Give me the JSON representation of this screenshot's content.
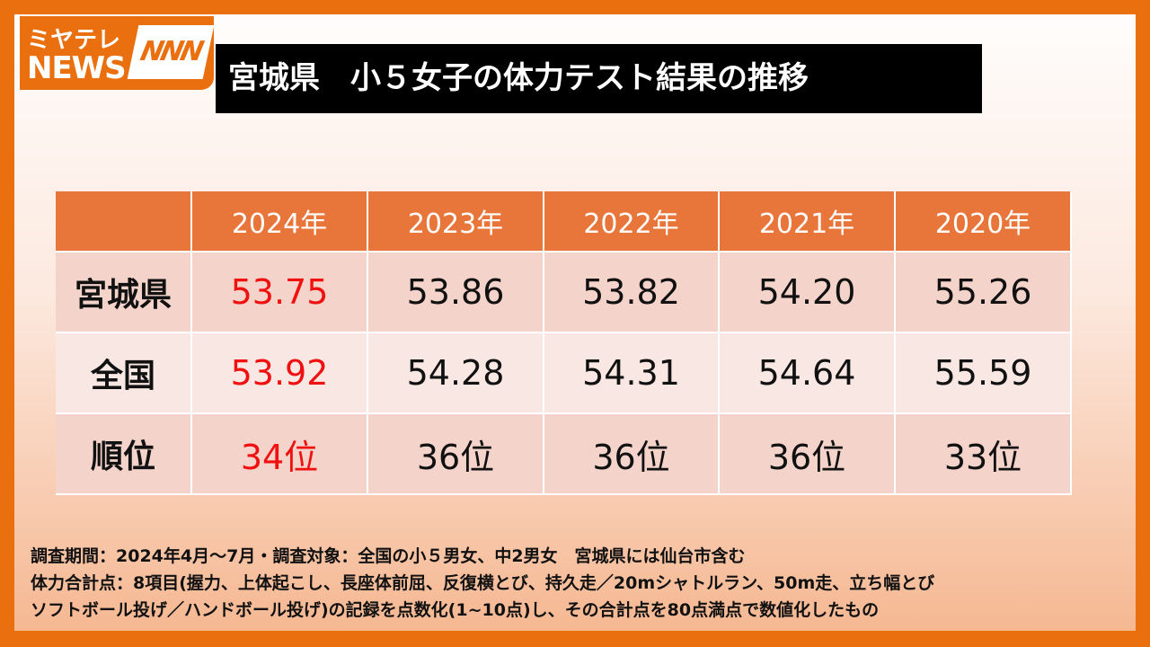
{
  "logo": {
    "line1": "ミヤテレ",
    "line2": "NEWS",
    "mark": "NNN"
  },
  "title": "宮城県　小５女子の体力テスト結果の推移",
  "table": {
    "columns": [
      "2024年",
      "2023年",
      "2022年",
      "2021年",
      "2020年"
    ],
    "rows": [
      {
        "label": "宮城県",
        "cells": [
          "53.75",
          "53.86",
          "53.82",
          "54.20",
          "55.26"
        ]
      },
      {
        "label": "全国",
        "cells": [
          "53.92",
          "54.28",
          "54.31",
          "54.64",
          "55.59"
        ]
      },
      {
        "label": "順位",
        "cells": [
          "34位",
          "36位",
          "36位",
          "36位",
          "33位"
        ]
      }
    ]
  },
  "notes": [
    "調査期間：2024年4月～7月・調査対象：全国の小５男女、中2男女　宮城県には仙台市含む",
    "体力合計点：8項目(握力、上体起こし、長座体前屈、反復横とび、持久走／20mシャトルラン、50m走、立ち幅とび",
    "ソフトボール投げ／ハンドボール投げ)の記録を点数化(1~10点)し、その合計点を80点満点で数値化したもの"
  ]
}
